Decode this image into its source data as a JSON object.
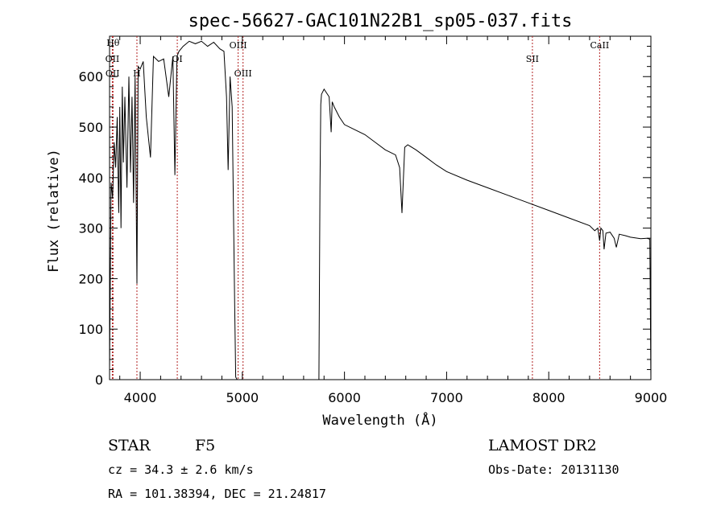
{
  "chart_data": {
    "type": "line",
    "title": "spec-56627-GAC101N22B1_sp05-037.fits",
    "xlabel": "Wavelength (Å)",
    "ylabel": "Flux (relative)",
    "xlim": [
      3700,
      9000
    ],
    "ylim": [
      0,
      680
    ],
    "xticks": [
      4000,
      5000,
      6000,
      7000,
      8000,
      9000
    ],
    "yticks": [
      0,
      100,
      200,
      300,
      400,
      500,
      600
    ],
    "grid": false,
    "line_color": "#000000",
    "marker_color": "#b22222",
    "spectral_lines": [
      {
        "label": "Hθ",
        "wavelength": 3734
      },
      {
        "label": "OII",
        "wavelength": 3727
      },
      {
        "label": "OII",
        "wavelength": 3729
      },
      {
        "label": "H",
        "wavelength": 3968
      },
      {
        "label": "OI",
        "wavelength": 4363
      },
      {
        "label": "OIII",
        "wavelength": 4959
      },
      {
        "label": "OIII",
        "wavelength": 5007
      },
      {
        "label": "SII",
        "wavelength": 7840
      },
      {
        "label": "CaII",
        "wavelength": 8498
      }
    ],
    "series": [
      {
        "x": [
          3700,
          3715,
          3730,
          3745,
          3760,
          3775,
          3790,
          3800,
          3812,
          3825,
          3836,
          3850,
          3870,
          3889,
          3905,
          3920,
          3935,
          3950,
          3968,
          3980,
          4000,
          4030,
          4060,
          4101,
          4130,
          4180,
          4230,
          4280,
          4320,
          4340,
          4360,
          4380,
          4420,
          4480,
          4540,
          4600,
          4660,
          4720,
          4780,
          4820,
          4845,
          4861,
          4880,
          4900,
          4915,
          4925,
          4935,
          4950,
          5000,
          5100,
          5300,
          5500,
          5700,
          5750,
          5760,
          5768,
          5775,
          5800,
          5850,
          5870,
          5880,
          5900,
          5950,
          6000,
          6100,
          6200,
          6300,
          6400,
          6500,
          6540,
          6563,
          6590,
          6620,
          6700,
          6800,
          6900,
          7000,
          7200,
          7400,
          7600,
          7800,
          8000,
          8200,
          8400,
          8450,
          8480,
          8498,
          8510,
          8530,
          8542,
          8560,
          8600,
          8640,
          8662,
          8690,
          8750,
          8800,
          8900,
          8960,
          8990,
          9000
        ],
        "y": [
          20,
          390,
          360,
          470,
          420,
          520,
          330,
          540,
          300,
          580,
          430,
          560,
          380,
          600,
          410,
          560,
          350,
          600,
          190,
          620,
          615,
          630,
          520,
          440,
          640,
          630,
          635,
          560,
          640,
          405,
          640,
          650,
          660,
          670,
          665,
          670,
          660,
          668,
          655,
          650,
          560,
          415,
          600,
          540,
          300,
          150,
          5,
          0,
          0,
          0,
          0,
          0,
          0,
          0,
          380,
          545,
          565,
          575,
          560,
          490,
          550,
          540,
          520,
          505,
          495,
          485,
          470,
          455,
          445,
          420,
          330,
          460,
          465,
          455,
          440,
          425,
          412,
          395,
          380,
          365,
          350,
          335,
          320,
          305,
          295,
          300,
          275,
          300,
          295,
          258,
          290,
          292,
          280,
          262,
          288,
          285,
          282,
          279,
          280,
          278,
          0
        ]
      }
    ]
  },
  "info": {
    "object_class": "STAR",
    "subclass": "F5",
    "survey": "LAMOST DR2",
    "cz": "cz = 34.3 ± 2.6 km/s",
    "obs_date": "Obs-Date: 20131130",
    "coords": "RA = 101.38394, DEC =  21.24817"
  }
}
